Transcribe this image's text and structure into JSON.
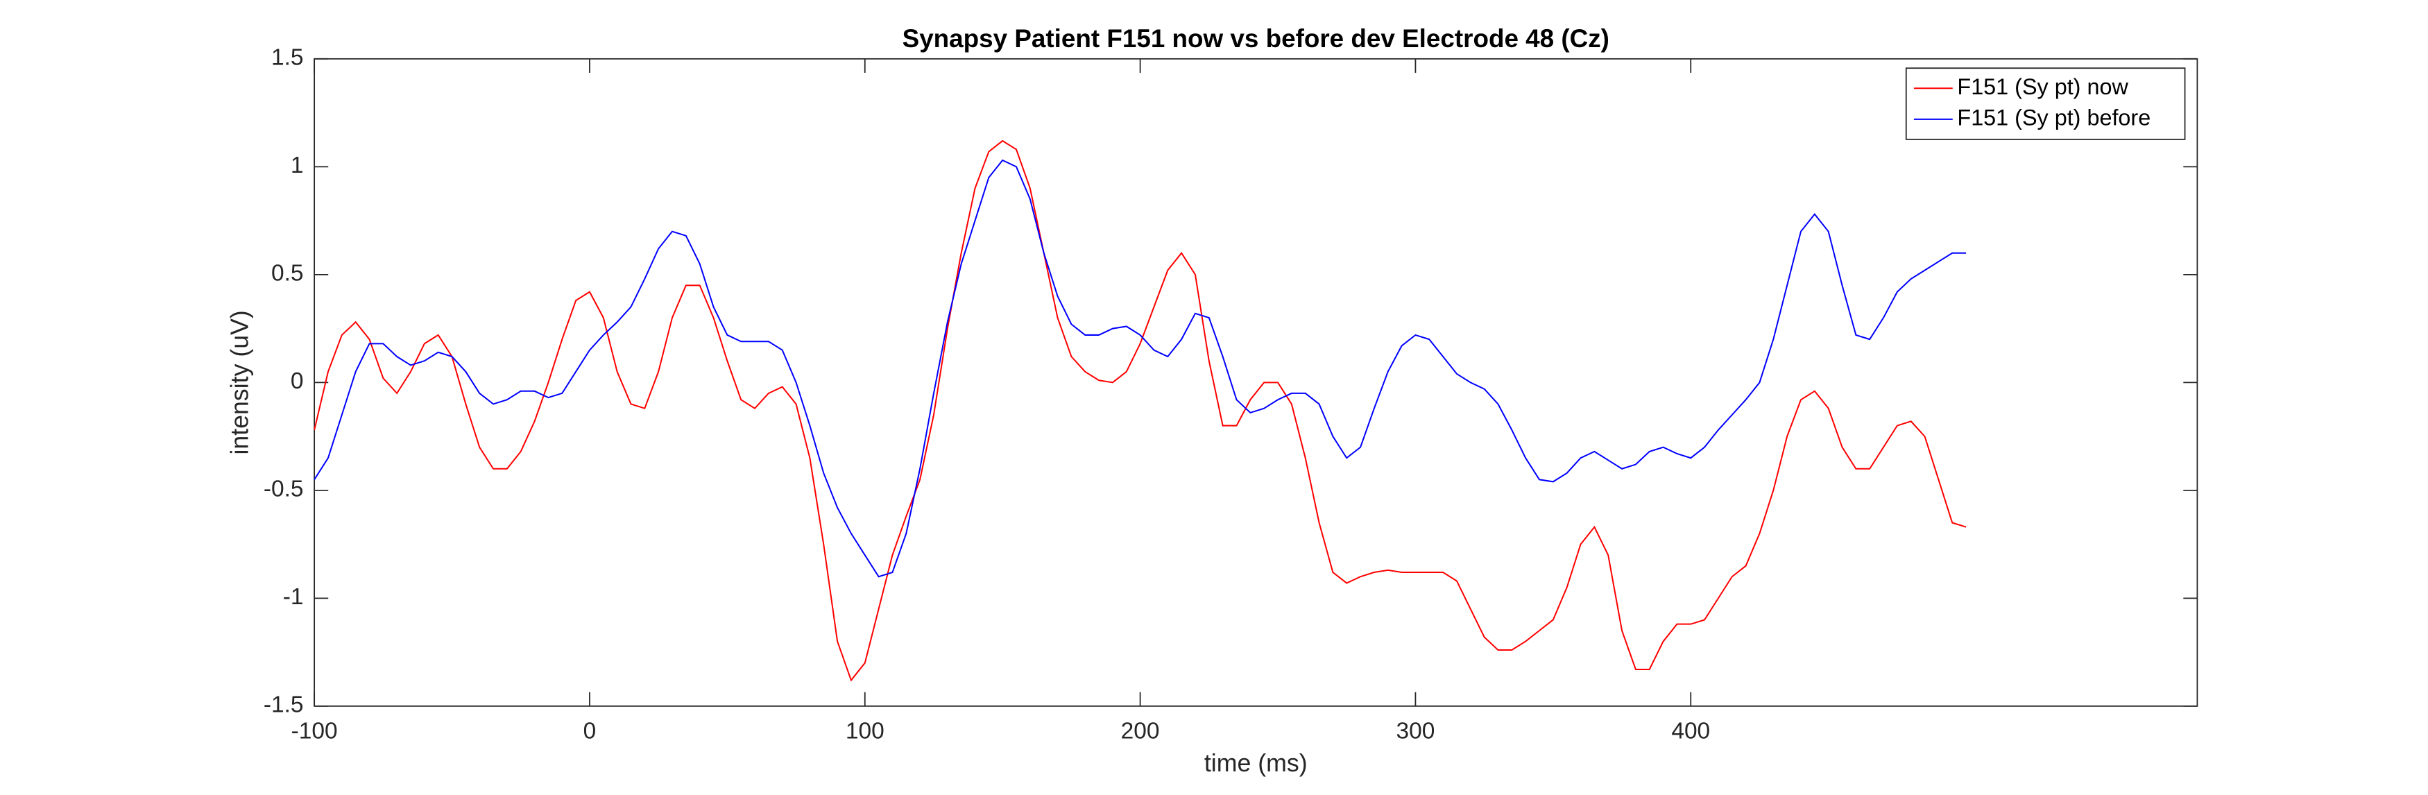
{
  "chart_data": {
    "type": "line",
    "title": "Synapsy Patient F151 now vs before dev Electrode 48 (Cz)",
    "x_label": "time (ms)",
    "y_label": "intensity (uV)",
    "x": [
      -100,
      -95,
      -90,
      -85,
      -80,
      -75,
      -70,
      -65,
      -60,
      -55,
      -50,
      -45,
      -40,
      -35,
      -30,
      -25,
      -20,
      -15,
      -10,
      -5,
      0,
      5,
      10,
      15,
      20,
      25,
      30,
      35,
      40,
      45,
      50,
      55,
      60,
      65,
      70,
      75,
      80,
      85,
      90,
      95,
      100,
      105,
      110,
      115,
      120,
      125,
      130,
      135,
      140,
      145,
      150,
      155,
      160,
      165,
      170,
      175,
      180,
      185,
      190,
      195,
      200,
      205,
      210,
      215,
      220,
      225,
      230,
      235,
      240,
      245,
      250,
      255,
      260,
      265,
      270,
      275,
      280,
      285,
      290,
      295,
      300,
      305,
      310,
      315,
      320,
      325,
      330,
      335,
      340,
      345,
      350,
      355,
      360,
      365,
      370,
      375,
      380,
      385,
      390,
      395,
      400,
      405,
      410,
      415,
      420,
      425,
      430,
      435,
      440,
      445,
      450,
      455,
      460,
      465,
      470,
      475,
      480,
      485,
      490,
      495,
      500
    ],
    "series": [
      {
        "name": "F151 (Sy pt) now",
        "color": "#ff0000",
        "values": [
          -0.22,
          0.05,
          0.22,
          0.28,
          0.2,
          0.02,
          -0.05,
          0.05,
          0.18,
          0.22,
          0.12,
          -0.1,
          -0.3,
          -0.4,
          -0.4,
          -0.32,
          -0.18,
          0.0,
          0.2,
          0.38,
          0.42,
          0.3,
          0.05,
          -0.1,
          -0.12,
          0.05,
          0.3,
          0.45,
          0.45,
          0.3,
          0.1,
          -0.08,
          -0.12,
          -0.05,
          -0.02,
          -0.1,
          -0.35,
          -0.75,
          -1.2,
          -1.38,
          -1.3,
          -1.05,
          -0.8,
          -0.62,
          -0.45,
          -0.15,
          0.25,
          0.6,
          0.9,
          1.07,
          1.12,
          1.08,
          0.9,
          0.6,
          0.3,
          0.12,
          0.05,
          0.01,
          0.0,
          0.05,
          0.18,
          0.35,
          0.52,
          0.6,
          0.5,
          0.1,
          -0.2,
          -0.2,
          -0.08,
          0.0,
          0.0,
          -0.1,
          -0.35,
          -0.65,
          -0.88,
          -0.93,
          -0.9,
          -0.88,
          -0.87,
          -0.88,
          -0.88,
          -0.88,
          -0.88,
          -0.92,
          -1.05,
          -1.18,
          -1.24,
          -1.24,
          -1.2,
          -1.15,
          -1.1,
          -0.95,
          -0.75,
          -0.67,
          -0.8,
          -1.15,
          -1.33,
          -1.33,
          -1.2,
          -1.12,
          -1.12,
          -1.1,
          -1.0,
          -0.9,
          -0.85,
          -0.7,
          -0.5,
          -0.25,
          -0.08,
          -0.04,
          -0.12,
          -0.3,
          -0.4,
          -0.4,
          -0.3,
          -0.2,
          -0.18,
          -0.25,
          -0.45,
          -0.65,
          -0.67
        ]
      },
      {
        "name": "F151 (Sy pt) before",
        "color": "#0000ff",
        "values": [
          -0.45,
          -0.35,
          -0.15,
          0.05,
          0.18,
          0.18,
          0.12,
          0.08,
          0.1,
          0.14,
          0.12,
          0.05,
          -0.05,
          -0.1,
          -0.08,
          -0.04,
          -0.04,
          -0.07,
          -0.05,
          0.05,
          0.15,
          0.22,
          0.28,
          0.35,
          0.48,
          0.62,
          0.7,
          0.68,
          0.55,
          0.35,
          0.22,
          0.19,
          0.19,
          0.19,
          0.15,
          0.0,
          -0.2,
          -0.42,
          -0.58,
          -0.7,
          -0.8,
          -0.9,
          -0.88,
          -0.7,
          -0.4,
          -0.05,
          0.28,
          0.55,
          0.75,
          0.95,
          1.03,
          1.0,
          0.85,
          0.6,
          0.4,
          0.27,
          0.22,
          0.22,
          0.25,
          0.26,
          0.22,
          0.15,
          0.12,
          0.2,
          0.32,
          0.3,
          0.12,
          -0.08,
          -0.14,
          -0.12,
          -0.08,
          -0.05,
          -0.05,
          -0.1,
          -0.25,
          -0.35,
          -0.3,
          -0.12,
          0.05,
          0.17,
          0.22,
          0.2,
          0.12,
          0.04,
          0.0,
          -0.03,
          -0.1,
          -0.22,
          -0.35,
          -0.45,
          -0.46,
          -0.42,
          -0.35,
          -0.32,
          -0.36,
          -0.4,
          -0.38,
          -0.32,
          -0.3,
          -0.33,
          -0.35,
          -0.3,
          -0.22,
          -0.15,
          -0.08,
          0.0,
          0.2,
          0.45,
          0.7,
          0.78,
          0.7,
          0.45,
          0.22,
          0.2,
          0.3,
          0.42,
          0.48,
          0.52,
          0.56,
          0.6,
          0.6
        ]
      }
    ],
    "xlim": [
      -100,
      584
    ],
    "xticks": [
      -100,
      0,
      100,
      200,
      300,
      400
    ],
    "ylim": [
      -1.5,
      1.5
    ],
    "yticks": [
      -1.5,
      -1,
      -0.5,
      0,
      0.5,
      1,
      1.5
    ],
    "legend": "upper right"
  }
}
